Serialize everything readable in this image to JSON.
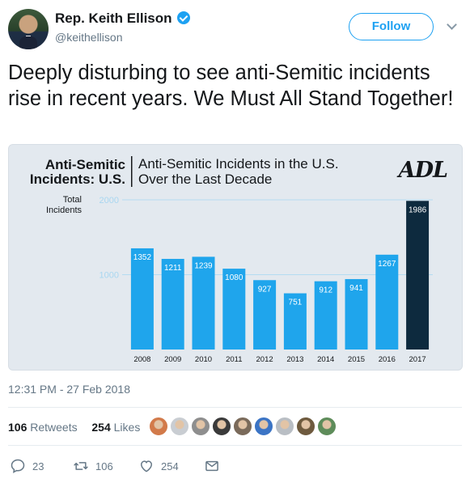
{
  "header": {
    "name": "Rep. Keith Ellison",
    "handle": "@keithellison",
    "follow_label": "Follow"
  },
  "tweet": {
    "text": "Deeply disturbing to see anti-Semitic incidents rise in recent years. We Must All Stand Together!",
    "timestamp": "12:31 PM - 27 Feb 2018"
  },
  "chart_data": {
    "type": "bar",
    "title": "Anti-Semitic Incidents in the U.S. Over the Last Decade",
    "badge_line1": "Anti-Semitic",
    "badge_line2": "Incidents: U.S.",
    "logo": "ADL",
    "ylabel": "Total Incidents",
    "ylabel_line1": "Total",
    "ylabel_line2": "Incidents",
    "ylim": [
      0,
      2000
    ],
    "yticks": [
      1000,
      2000
    ],
    "categories": [
      "2008",
      "2009",
      "2010",
      "2011",
      "2012",
      "2013",
      "2014",
      "2015",
      "2016",
      "2017"
    ],
    "values": [
      1352,
      1211,
      1239,
      1080,
      927,
      751,
      912,
      941,
      1267,
      1986
    ],
    "colors": {
      "bar": "#1fa5ec",
      "highlight": "#0d2a3e",
      "background": "#e3e9ef",
      "grid": "#b4dcf1",
      "tick": "#a9d7f0"
    }
  },
  "stats": {
    "retweets_count": "106",
    "retweets_label": "Retweets",
    "likes_count": "254",
    "likes_label": "Likes"
  },
  "liker_avatars": [
    "#d27a4a",
    "#c9cdd2",
    "#8e8e8e",
    "#3a3a3a",
    "#7a6a5a",
    "#3b74c5",
    "#b9bec4",
    "#6e5a3e",
    "#5e8c5a"
  ],
  "actions": {
    "reply_count": "23",
    "retweet_count": "106",
    "like_count": "254"
  }
}
